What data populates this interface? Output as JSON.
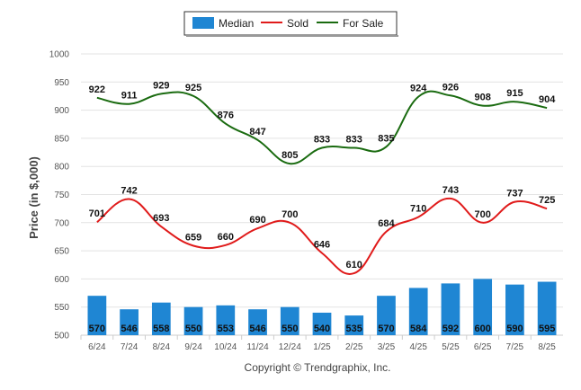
{
  "chart_data": {
    "type": "bar",
    "categories": [
      "6/24",
      "7/24",
      "8/24",
      "9/24",
      "10/24",
      "11/24",
      "12/24",
      "1/25",
      "2/25",
      "3/25",
      "4/25",
      "5/25",
      "6/25",
      "7/25",
      "8/25"
    ],
    "series": [
      {
        "name": "Median",
        "type": "bar",
        "color": "#1f86d3",
        "values": [
          570,
          546,
          558,
          550,
          553,
          546,
          550,
          540,
          535,
          570,
          584,
          592,
          600,
          590,
          595
        ]
      },
      {
        "name": "Sold",
        "type": "line",
        "color": "#e01b1b",
        "values": [
          701,
          742,
          693,
          659,
          660,
          690,
          700,
          646,
          610,
          684,
          710,
          743,
          700,
          737,
          725
        ]
      },
      {
        "name": "For Sale",
        "type": "line",
        "color": "#1a6b10",
        "values": [
          922,
          911,
          929,
          925,
          876,
          847,
          805,
          833,
          833,
          835,
          924,
          926,
          908,
          915,
          904
        ]
      }
    ],
    "ylabel": "Price (in $,000)",
    "xlabel": "",
    "ylim": [
      500,
      1000
    ],
    "yticks": [
      500,
      550,
      600,
      650,
      700,
      750,
      800,
      850,
      900,
      950,
      1000
    ],
    "grid": true,
    "legend_placement": "top-center"
  },
  "copyright": "Copyright © Trendgraphix, Inc."
}
